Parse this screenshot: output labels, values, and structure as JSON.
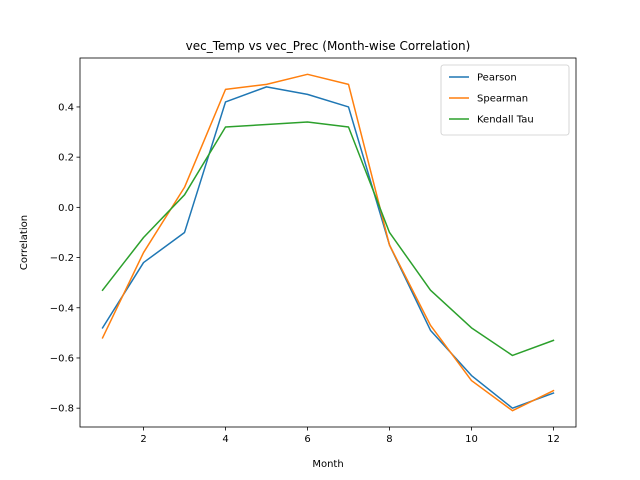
{
  "chart_data": {
    "type": "line",
    "title": "vec_Temp vs vec_Prec (Month-wise Correlation)",
    "xlabel": "Month",
    "ylabel": "Correlation",
    "x": [
      1,
      2,
      3,
      4,
      5,
      6,
      7,
      8,
      9,
      10,
      11,
      12
    ],
    "xticks": [
      2,
      4,
      6,
      8,
      10,
      12
    ],
    "yticks": [
      -0.8,
      -0.6,
      -0.4,
      -0.2,
      0.0,
      0.2,
      0.4
    ],
    "xtick_labels": [
      "2",
      "4",
      "6",
      "8",
      "10",
      "12"
    ],
    "ytick_labels": [
      "−0.8",
      "−0.6",
      "−0.4",
      "−0.2",
      "0.0",
      "0.2",
      "0.4"
    ],
    "xlim": [
      0.45,
      12.55
    ],
    "ylim": [
      -0.875,
      0.595
    ],
    "grid": false,
    "legend_position": "upper right",
    "series": [
      {
        "name": "Pearson",
        "color": "#1f77b4",
        "values": [
          -0.48,
          -0.22,
          -0.1,
          0.42,
          0.48,
          0.45,
          0.4,
          -0.15,
          -0.49,
          -0.67,
          -0.8,
          -0.74
        ]
      },
      {
        "name": "Spearman",
        "color": "#ff7f0e",
        "values": [
          -0.52,
          -0.18,
          0.08,
          0.47,
          0.49,
          0.53,
          0.49,
          -0.15,
          -0.47,
          -0.69,
          -0.81,
          -0.73
        ]
      },
      {
        "name": "Kendall Tau",
        "color": "#2ca02c",
        "values": [
          -0.33,
          -0.12,
          0.05,
          0.32,
          0.33,
          0.34,
          0.32,
          -0.1,
          -0.33,
          -0.48,
          -0.59,
          -0.53
        ]
      }
    ]
  }
}
